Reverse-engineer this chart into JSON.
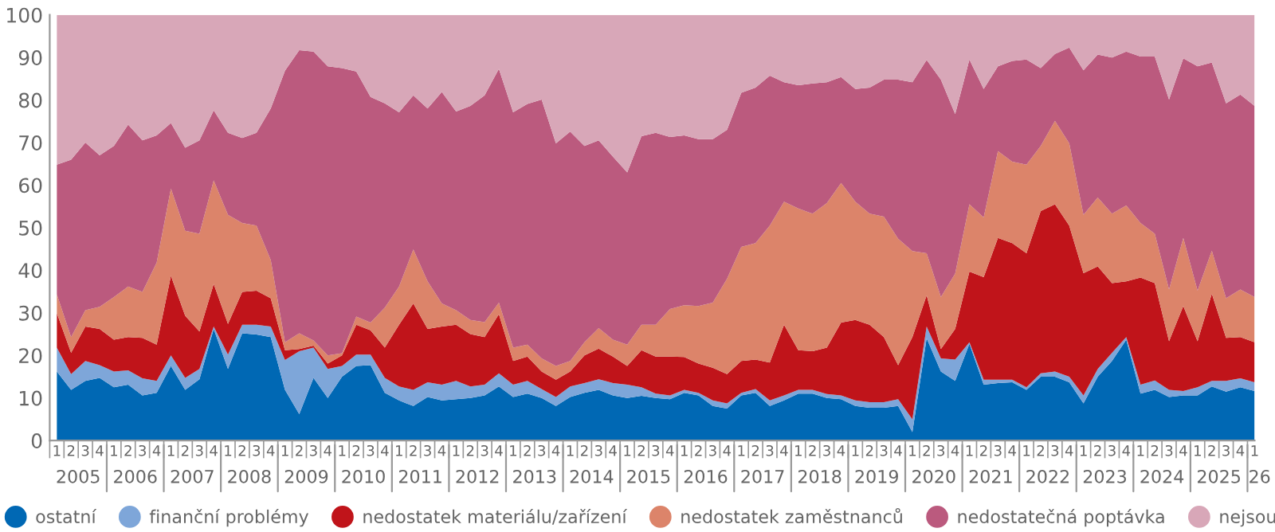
{
  "chart_data": {
    "type": "area",
    "stacked": true,
    "categories": [
      "1",
      "2",
      "3",
      "4",
      "1",
      "2",
      "3",
      "4",
      "1",
      "2",
      "3",
      "4",
      "1",
      "2",
      "3",
      "4",
      "1",
      "2",
      "3",
      "4",
      "1",
      "2",
      "3",
      "4",
      "1",
      "2",
      "3",
      "4",
      "1",
      "2",
      "3",
      "4",
      "1",
      "2",
      "3",
      "4",
      "1",
      "2",
      "3",
      "4",
      "1",
      "2",
      "3",
      "4",
      "1",
      "2",
      "3",
      "4",
      "1",
      "2",
      "3",
      "4",
      "1",
      "2",
      "3",
      "4",
      "1",
      "2",
      "3",
      "4",
      "1",
      "2",
      "3",
      "4",
      "1",
      "2",
      "3",
      "4",
      "1",
      "2",
      "3",
      "4",
      "1",
      "2",
      "3",
      "4",
      "1",
      "2",
      "3",
      "4",
      "1",
      "2",
      "3",
      "4",
      "1"
    ],
    "annotations": [
      "2005",
      "2006",
      "2007",
      "2008",
      "2009",
      "2010",
      "2011",
      "2012",
      "2013",
      "2014",
      "2015",
      "2016",
      "2017",
      "2018",
      "2019",
      "2020",
      "2021",
      "2022",
      "2023",
      "2024",
      "2025",
      "26"
    ],
    "series": [
      {
        "name": "ostatní",
        "color": "#0068b4",
        "values": [
          16.2,
          11.9,
          14,
          14.7,
          12.5,
          13.1,
          10.6,
          11.2,
          17.5,
          11.9,
          14.4,
          26.2,
          16.8,
          25.2,
          24.9,
          24.3,
          11.9,
          6.2,
          14.7,
          10,
          15,
          17.5,
          17.7,
          11.2,
          9.4,
          8.1,
          10.2,
          9.4,
          9.7,
          10,
          10.6,
          12.7,
          10.2,
          11,
          10,
          8.1,
          10.2,
          11.2,
          11.9,
          10.6,
          10,
          10.5,
          10,
          9.7,
          11.2,
          10.6,
          8.1,
          7.5,
          10.6,
          11.2,
          8.1,
          9.4,
          11,
          11,
          10,
          9.7,
          8.1,
          7.7,
          7.7,
          8.1,
          2,
          24,
          16.2,
          14,
          22.7,
          13.1,
          13.5,
          13.7,
          11.9,
          15,
          15,
          13.7,
          8.7,
          15,
          18.7,
          23.7,
          11,
          11.9,
          10.2,
          10.6,
          10.6,
          12.7,
          11.5,
          12.5,
          11.6
        ]
      },
      {
        "name": "finanční problémy",
        "color": "#7ea6d9",
        "values": [
          5.6,
          3.7,
          4.7,
          3,
          3.7,
          3.4,
          4,
          2.8,
          2.5,
          2.8,
          2.4,
          0.6,
          3.4,
          2,
          2.3,
          2.5,
          7,
          14.8,
          7.1,
          6.8,
          2.5,
          2.7,
          2.5,
          3.5,
          3.3,
          3.8,
          3.5,
          3.7,
          4.3,
          2.7,
          2.5,
          3.1,
          2.9,
          3,
          2.1,
          2.1,
          2.5,
          2.3,
          2.5,
          2.9,
          3.1,
          2,
          1,
          0.9,
          0.7,
          0.6,
          1.3,
          1.2,
          0.6,
          0.9,
          1.3,
          1.2,
          0.9,
          0.9,
          0.9,
          0.9,
          1.3,
          1.3,
          1.3,
          1.6,
          3,
          2.8,
          3.1,
          5,
          0.4,
          1.2,
          0.8,
          0.6,
          0.6,
          0.8,
          1.2,
          1.3,
          1.9,
          1.8,
          1.9,
          0.6,
          2.1,
          2.2,
          1.7,
          1,
          1.9,
          1.3,
          2.5,
          2.1,
          2.1
        ]
      },
      {
        "name": "nedostatek materiálu/zařízení",
        "color": "#c0141a",
        "values": [
          8.1,
          5,
          8.1,
          8.5,
          7.5,
          7.8,
          9.5,
          8.5,
          18.7,
          14.6,
          8.8,
          10,
          7.2,
          7.7,
          8,
          6.6,
          2.3,
          0.5,
          0.5,
          1.3,
          2.5,
          7,
          5.7,
          7.1,
          14.5,
          20.3,
          12.5,
          13.7,
          13.2,
          12.3,
          11.2,
          13.9,
          5.6,
          5.7,
          4.1,
          4.1,
          3.5,
          6.5,
          7.2,
          6.2,
          4.4,
          8.7,
          8.7,
          9.1,
          7.7,
          6.9,
          7.7,
          6.9,
          7.5,
          6.9,
          8.9,
          16.6,
          9.3,
          9.1,
          10.9,
          17.1,
          18.9,
          18.2,
          15.3,
          8,
          19.3,
          7.3,
          2.2,
          7.2,
          16.6,
          24.1,
          33.3,
          32.1,
          31.5,
          38.1,
          39.3,
          35.5,
          28.7,
          24.1,
          16.4,
          13.1,
          25.2,
          22.9,
          11.4,
          20,
          10.8,
          20.5,
          10.1,
          9.7,
          9.4
        ]
      },
      {
        "name": "nedostatek zaměstnanců",
        "color": "#dc846a",
        "values": [
          4.4,
          3.7,
          3.8,
          5.2,
          10,
          11.9,
          10.8,
          19.3,
          20.5,
          20,
          23,
          24.3,
          25.6,
          16.2,
          15.3,
          9,
          1.9,
          3.7,
          1.2,
          1.9,
          0.5,
          1.9,
          1.8,
          9.4,
          9,
          12.7,
          11.2,
          5.4,
          3.4,
          3.3,
          3.5,
          2.7,
          3.1,
          2.8,
          3.1,
          3.2,
          2.5,
          3.1,
          4.8,
          4,
          5,
          6,
          7.5,
          11.2,
          12.2,
          13.5,
          15.3,
          22.4,
          26.8,
          27.4,
          32.2,
          28.9,
          33.3,
          32.3,
          34,
          32.8,
          27.8,
          26.1,
          28.3,
          29.7,
          20.2,
          9.9,
          12.2,
          13,
          15.8,
          14,
          20.4,
          19.1,
          20.8,
          15.3,
          19.6,
          19.3,
          13.7,
          16.2,
          16.3,
          17.8,
          12.8,
          11.6,
          12.2,
          16,
          11.9,
          10.1,
          9.3,
          11.2,
          10.6
        ]
      },
      {
        "name": "nedostatečná poptávka",
        "color": "#bb5a7e",
        "values": [
          30.5,
          41.7,
          39.4,
          35.6,
          35.5,
          38,
          35.6,
          29.9,
          15.4,
          19.5,
          21.9,
          16.5,
          19.3,
          20,
          21.8,
          35.6,
          63.8,
          66.5,
          67.9,
          67.9,
          67,
          57.6,
          53,
          48,
          40.9,
          36.2,
          40.6,
          49.7,
          46.7,
          50.3,
          53.3,
          54.9,
          55.3,
          56.6,
          60.8,
          52.3,
          53.9,
          46.1,
          44.1,
          43,
          40.5,
          44.3,
          45.1,
          40.4,
          39.9,
          39.2,
          38.4,
          35,
          36.2,
          36.5,
          35.2,
          28.1,
          29,
          30.6,
          28.4,
          24.9,
          26.5,
          29.6,
          32.2,
          37.4,
          39.7,
          45.4,
          51.1,
          37.5,
          34,
          30.2,
          19.9,
          23.7,
          24.7,
          18.3,
          15.7,
          22.5,
          34,
          33.6,
          36.7,
          36.2,
          39.1,
          41.6,
          44.6,
          42.2,
          52.7,
          44.2,
          45.8,
          45.8,
          44.9
        ]
      },
      {
        "name": "nejsou",
        "color": "#d8a7b8",
        "values": [
          35.2,
          34,
          30,
          33,
          30.8,
          25.8,
          29.5,
          28.3,
          25.4,
          31.2,
          29.5,
          22.4,
          27.7,
          28.9,
          27.7,
          22,
          13.1,
          8.3,
          8.6,
          12.1,
          12.5,
          13.3,
          19.3,
          20.8,
          22.9,
          18.9,
          22,
          18.1,
          22.7,
          21.4,
          18.9,
          12.7,
          22.9,
          20.9,
          19.9,
          30.2,
          27.4,
          30.8,
          29.5,
          33.3,
          37,
          28.5,
          27.7,
          28.7,
          28.3,
          29.2,
          29.2,
          27,
          18.3,
          17.1,
          14.3,
          15.8,
          16.5,
          16.1,
          15.8,
          14.6,
          17.4,
          17.1,
          15.2,
          15.2,
          15.8,
          10.6,
          15.2,
          23.3,
          10.5,
          17.4,
          12.1,
          10.8,
          10.5,
          12.5,
          9.2,
          7.7,
          13,
          9.3,
          10,
          8.6,
          9.8,
          9.8,
          19.9,
          10.2,
          12.1,
          11.2,
          20.8,
          18.7,
          21.4
        ]
      }
    ],
    "ylim": [
      0,
      100
    ],
    "yticks": [
      0,
      10,
      20,
      30,
      40,
      50,
      60,
      70,
      80,
      90,
      100
    ],
    "legend": "bottom",
    "grid": false
  }
}
